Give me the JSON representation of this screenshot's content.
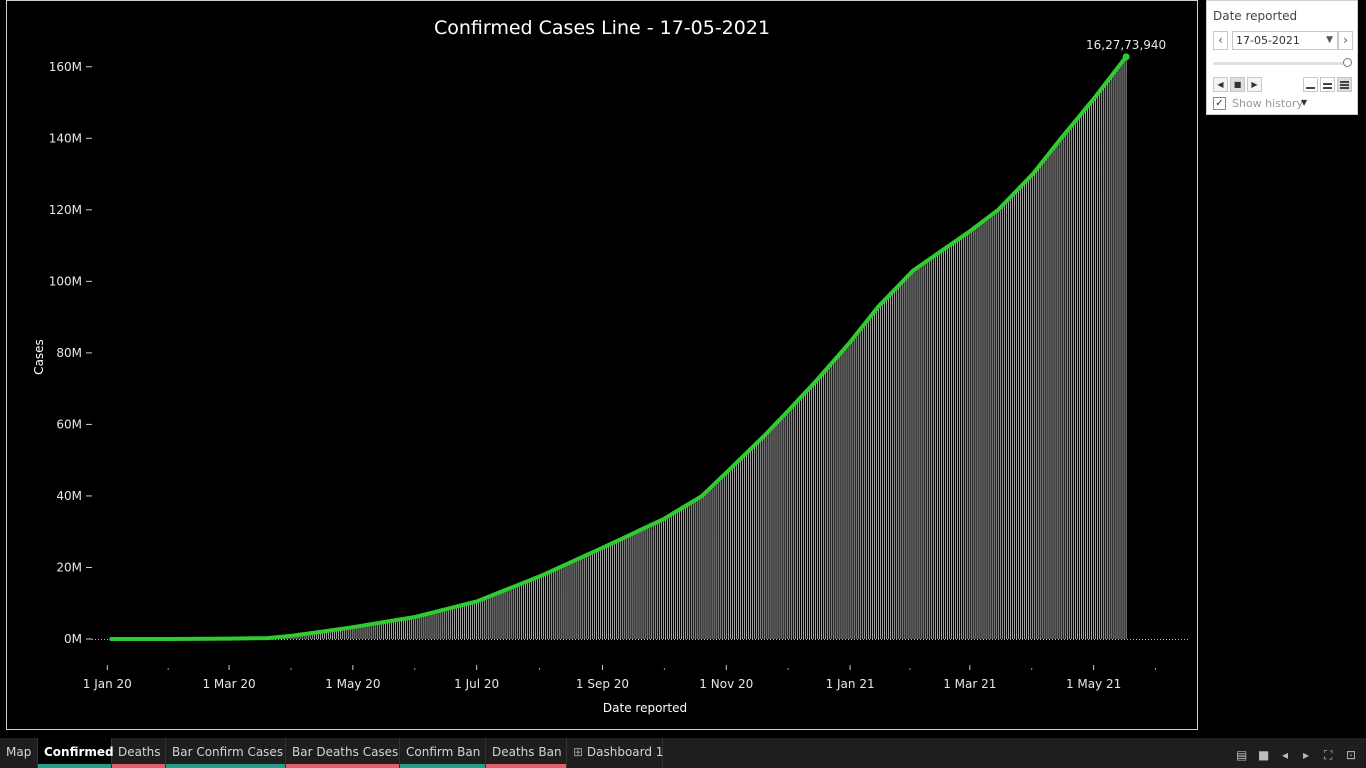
{
  "chart_data": {
    "type": "area",
    "title": "Confirmed Cases Line - 17-05-2021",
    "xlabel": "Date reported",
    "ylabel": "Cases",
    "ylim": [
      0,
      170000000
    ],
    "yticks": [
      0,
      20000000,
      40000000,
      60000000,
      80000000,
      100000000,
      120000000,
      140000000,
      160000000
    ],
    "ytick_labels": [
      "0M",
      "20M",
      "40M",
      "60M",
      "80M",
      "100M",
      "120M",
      "140M",
      "160M"
    ],
    "xlim": [
      "2019-12-22",
      "2021-06-17"
    ],
    "xtick_dates": [
      "2020-01-01",
      "2020-03-01",
      "2020-05-01",
      "2020-07-01",
      "2020-09-01",
      "2020-11-01",
      "2021-01-01",
      "2021-03-01",
      "2021-05-01"
    ],
    "xtick_labels": [
      "1 Jan 20",
      "1 Mar 20",
      "1 May 20",
      "1 Jul 20",
      "1 Sep 20",
      "1 Nov 20",
      "1 Jan 21",
      "1 Mar 21",
      "1 May 21"
    ],
    "color": "#2ecc2e",
    "series": [
      {
        "points": [
          [
            "2020-01-03",
            0
          ],
          [
            "2020-02-01",
            0
          ],
          [
            "2020-03-01",
            90000
          ],
          [
            "2020-03-20",
            250000
          ],
          [
            "2020-04-01",
            900000
          ],
          [
            "2020-04-15",
            2000000
          ],
          [
            "2020-05-01",
            3300000
          ],
          [
            "2020-06-01",
            6200000
          ],
          [
            "2020-07-01",
            10500000
          ],
          [
            "2020-08-01",
            17500000
          ],
          [
            "2020-09-01",
            25500000
          ],
          [
            "2020-10-01",
            33500000
          ],
          [
            "2020-10-20",
            40000000
          ],
          [
            "2020-11-01",
            46500000
          ],
          [
            "2020-11-20",
            57000000
          ],
          [
            "2020-12-01",
            63500000
          ],
          [
            "2020-12-15",
            72000000
          ],
          [
            "2021-01-01",
            83000000
          ],
          [
            "2021-01-15",
            93000000
          ],
          [
            "2021-02-01",
            103000000
          ],
          [
            "2021-02-15",
            108500000
          ],
          [
            "2021-03-01",
            114000000
          ],
          [
            "2021-03-15",
            120000000
          ],
          [
            "2021-04-01",
            130000000
          ],
          [
            "2021-04-15",
            140000000
          ],
          [
            "2021-05-01",
            151000000
          ],
          [
            "2021-05-17",
            162773940
          ]
        ]
      }
    ],
    "annotation": {
      "date": "2021-05-17",
      "value": 162773940,
      "label": "16,27,73,940"
    }
  },
  "filter_panel": {
    "title": "Date reported",
    "selected_date": "17-05-2021",
    "show_history_label": "Show history",
    "show_history_checked": true
  },
  "tabs": [
    {
      "label": "Map",
      "accent": ""
    },
    {
      "label": "Confirmed",
      "accent": "#1f9e8a",
      "active": true
    },
    {
      "label": "Deaths",
      "accent": "#e0606a"
    },
    {
      "label": "Bar Confirm Cases",
      "accent": "#1f9e8a"
    },
    {
      "label": "Bar Deaths Cases",
      "accent": "#e0606a"
    },
    {
      "label": "Confirm Ban",
      "accent": "#1f9e8a"
    },
    {
      "label": "Deaths Ban",
      "accent": "#e0606a"
    },
    {
      "label": "Dashboard 1",
      "accent": "",
      "icon": "dashboard-grid-icon"
    }
  ],
  "bottom_icons": [
    "grid-view-icon",
    "single-view-icon",
    "previous-icon",
    "next-icon",
    "fullscreen-icon",
    "presentation-icon"
  ]
}
